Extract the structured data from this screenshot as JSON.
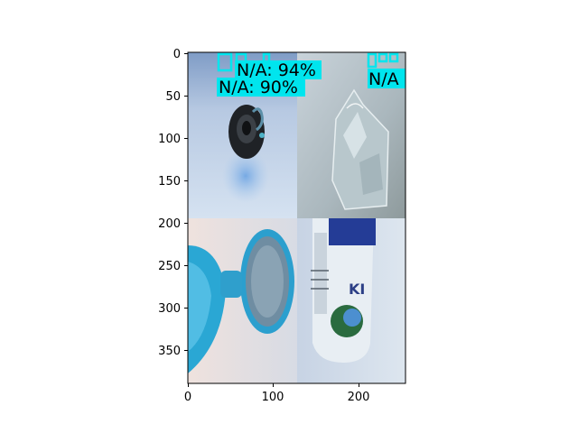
{
  "figure": {
    "x_ticks": [
      "0",
      "100",
      "200"
    ],
    "y_ticks": [
      "0",
      "50",
      "100",
      "150",
      "200",
      "250",
      "300",
      "350"
    ]
  },
  "tiles": [
    {
      "name": "tile-top-left",
      "subject": "dark round object with cable on light blue background"
    },
    {
      "name": "tile-top-right",
      "subject": "crumpled clear plastic bag"
    },
    {
      "name": "tile-bottom-left",
      "subject": "blue plastic container with open lid"
    },
    {
      "name": "tile-bottom-right",
      "subject": "plastic bottle with blue label"
    }
  ],
  "detections": [
    {
      "label": "N/A: 94%",
      "color": "#00e5ee"
    },
    {
      "label": "N/A: 90%",
      "color": "#00e5ee"
    },
    {
      "label": "N/A",
      "color": "#00e5ee"
    }
  ],
  "colors": {
    "box": "#00e5ee",
    "axis": "#000000"
  }
}
